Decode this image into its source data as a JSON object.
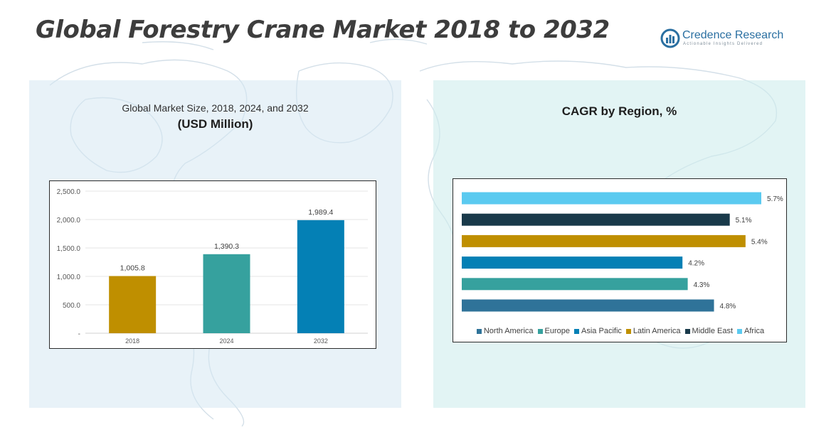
{
  "header": {
    "title": "Global Forestry Crane Market 2018 to 2032",
    "logo_name": "Credence",
    "logo_name2": "Research",
    "logo_tagline": "Actionable Insights Delivered"
  },
  "left_panel": {
    "subtitle": "Global Market Size, 2018, 2024, and 2032",
    "unit": "(USD Million)"
  },
  "right_panel": {
    "title": "CAGR by Region, %"
  },
  "colors": {
    "gold": "#bf8f00",
    "teal": "#36a19e",
    "blue": "#0480b5",
    "steel_blue": "#2f7399",
    "dark_navy": "#193a4a",
    "sky": "#5bcaf0"
  },
  "chart_data": [
    {
      "type": "bar",
      "categories": [
        "2018",
        "2024",
        "2032"
      ],
      "values": [
        1005.8,
        1390.3,
        1989.4
      ],
      "value_labels": [
        "1,005.8",
        "1,390.3",
        "1,989.4"
      ],
      "colors": [
        "#bf8f00",
        "#36a19e",
        "#0480b5"
      ],
      "title": "",
      "xlabel": "",
      "ylabel": "",
      "ylim": [
        0,
        2500
      ],
      "yticks": [
        0,
        500,
        1000,
        1500,
        2000,
        2500
      ],
      "ytick_labels": [
        "-",
        "500.0",
        "1,000.0",
        "1,500.0",
        "2,000.0",
        "2,500.0"
      ],
      "grid": true
    },
    {
      "type": "bar",
      "orientation": "horizontal",
      "categories": [
        "Africa",
        "Middle East",
        "Latin America",
        "Asia Pacific",
        "Europe",
        "North America"
      ],
      "values": [
        5.7,
        5.1,
        5.4,
        4.2,
        4.3,
        4.8
      ],
      "value_labels": [
        "5.7%",
        "5.1%",
        "5.4%",
        "4.2%",
        "4.3%",
        "4.8%"
      ],
      "colors": [
        "#5bcaf0",
        "#193a4a",
        "#bf8f00",
        "#0480b5",
        "#36a19e",
        "#2f7399"
      ],
      "legend": [
        {
          "name": "North America",
          "color": "#2f7399"
        },
        {
          "name": "Europe",
          "color": "#36a19e"
        },
        {
          "name": "Asia Pacific",
          "color": "#0480b5"
        },
        {
          "name": "Latin America",
          "color": "#bf8f00"
        },
        {
          "name": "Middle East",
          "color": "#193a4a"
        },
        {
          "name": "Africa",
          "color": "#5bcaf0"
        }
      ],
      "legend_position": "bottom",
      "xlim": [
        0,
        5.7
      ],
      "grid": false
    }
  ]
}
